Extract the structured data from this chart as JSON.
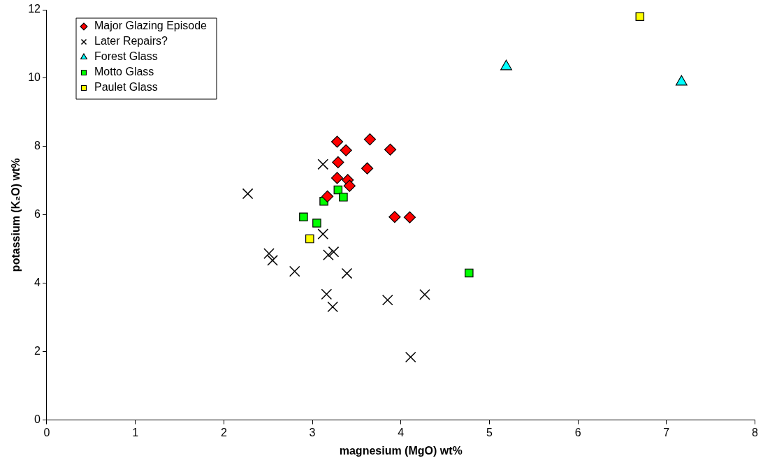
{
  "chart_data": {
    "type": "scatter",
    "xlabel": "magnesium (MgO) wt%",
    "ylabel": "potassium (K₂O) wt%",
    "xlim": [
      0,
      8
    ],
    "xticks": [
      0,
      1,
      2,
      3,
      4,
      5,
      6,
      7,
      8
    ],
    "ylim": [
      0,
      12
    ],
    "yticks": [
      0,
      2,
      4,
      6,
      8,
      10,
      12
    ],
    "grid": false,
    "legend": "top left",
    "series": [
      {
        "name": "Major Glazing Episode",
        "color": "#ff0000",
        "marker": "diamond",
        "x": [
          3.28,
          3.65,
          3.38,
          3.88,
          3.29,
          3.62,
          3.28,
          3.4,
          3.42,
          3.17,
          3.93,
          4.1
        ],
        "values": [
          8.14,
          8.21,
          7.89,
          7.91,
          7.54,
          7.36,
          7.08,
          7.02,
          6.85,
          6.54,
          5.94,
          5.93
        ]
      },
      {
        "name": "Later Repairs?",
        "color": "#000000",
        "marker": "cross",
        "x": [
          3.12,
          2.27,
          3.12,
          2.51,
          2.55,
          3.18,
          3.24,
          2.8,
          3.39,
          3.16,
          3.23,
          3.85,
          4.27,
          4.11
        ],
        "values": [
          7.48,
          6.62,
          5.44,
          4.87,
          4.67,
          4.83,
          4.92,
          4.35,
          4.29,
          3.68,
          3.31,
          3.51,
          3.67,
          1.84
        ]
      },
      {
        "name": "Forest Glass",
        "color": "#00ffff",
        "marker": "triangle",
        "x": [
          5.19,
          7.17
        ],
        "values": [
          10.34,
          9.89
        ]
      },
      {
        "name": "Motto Glass",
        "color": "#00ff00",
        "marker": "square",
        "x": [
          3.29,
          3.35,
          3.13,
          2.9,
          3.05,
          4.77
        ],
        "values": [
          6.73,
          6.52,
          6.4,
          5.94,
          5.76,
          4.3
        ]
      },
      {
        "name": "Paulet Glass",
        "color": "#ffff00",
        "marker": "square",
        "x": [
          2.97,
          6.7
        ],
        "values": [
          5.3,
          11.8
        ]
      }
    ]
  }
}
